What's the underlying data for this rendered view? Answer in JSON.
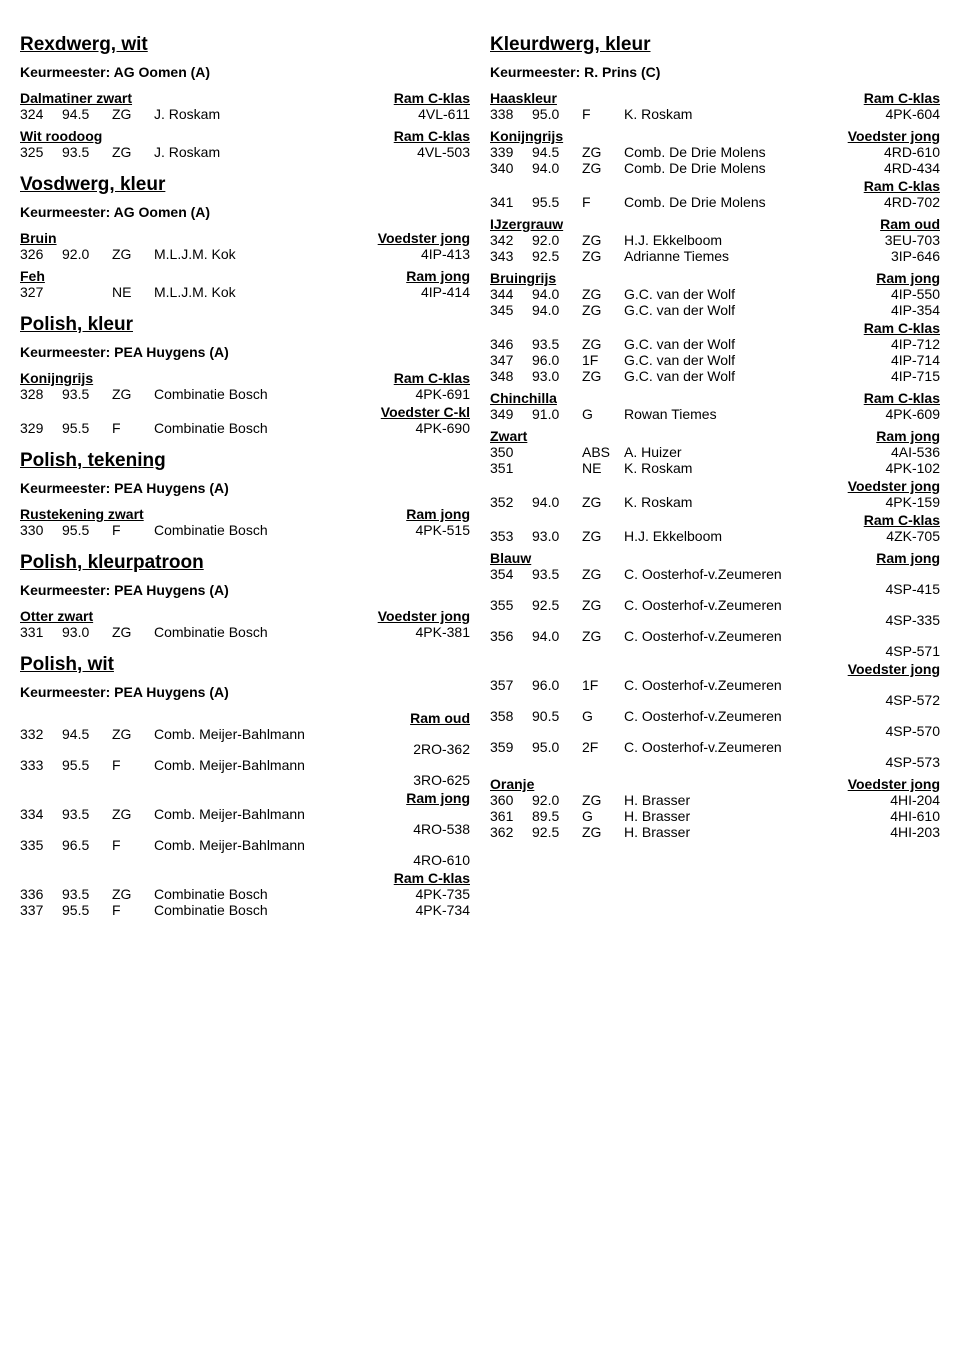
{
  "left": {
    "sections": [
      {
        "title": "Rexdwerg, wit",
        "judge": "Keurmeester: AG Oomen (A)",
        "groups": [
          {
            "sub_left": "Dalmatiner zwart",
            "sub_right": "Ram C-klas",
            "entries": [
              {
                "num": "324",
                "score": "94.5",
                "grade": "ZG",
                "name": "J. Roskam",
                "code": "4VL-611"
              }
            ]
          },
          {
            "sub_left": "Wit roodoog",
            "sub_right": "Ram C-klas",
            "entries": [
              {
                "num": "325",
                "score": "93.5",
                "grade": "ZG",
                "name": "J. Roskam",
                "code": "4VL-503"
              }
            ]
          }
        ]
      },
      {
        "title": "Vosdwerg, kleur",
        "judge": "Keurmeester: AG Oomen (A)",
        "groups": [
          {
            "sub_left": "Bruin",
            "sub_right": "Voedster jong",
            "entries": [
              {
                "num": "326",
                "score": "92.0",
                "grade": "ZG",
                "name": "M.L.J.M. Kok",
                "code": "4IP-413"
              }
            ]
          },
          {
            "sub_left": "Feh",
            "sub_right": "Ram jong",
            "entries": [
              {
                "num": "327",
                "score": "",
                "grade": "NE",
                "name": "M.L.J.M. Kok",
                "code": "4IP-414"
              }
            ]
          }
        ]
      },
      {
        "title": "Polish, kleur",
        "judge": "Keurmeester: PEA Huygens (A)",
        "groups": [
          {
            "sub_left": "Konijngrijs",
            "sub_right": "Ram C-klas",
            "entries": [
              {
                "num": "328",
                "score": "93.5",
                "grade": "ZG",
                "name": "Combinatie Bosch",
                "code": "4PK-691"
              }
            ],
            "tail_right": "Voedster C-kl",
            "tail_entries": [
              {
                "num": "329",
                "score": "95.5",
                "grade": "F",
                "name": "Combinatie Bosch",
                "code": "4PK-690"
              }
            ]
          }
        ]
      },
      {
        "title": "Polish, tekening",
        "judge": "Keurmeester: PEA Huygens (A)",
        "groups": [
          {
            "sub_left": "Rustekening zwart",
            "sub_right": "Ram jong",
            "entries": [
              {
                "num": "330",
                "score": "95.5",
                "grade": "F",
                "name": "Combinatie Bosch",
                "code": "4PK-515"
              }
            ]
          }
        ]
      },
      {
        "title": "Polish, kleurpatroon",
        "judge": "Keurmeester: PEA Huygens (A)",
        "groups": [
          {
            "sub_left": "Otter zwart",
            "sub_right": "Voedster jong",
            "entries": [
              {
                "num": "331",
                "score": "93.0",
                "grade": "ZG",
                "name": "Combinatie Bosch",
                "code": "4PK-381"
              }
            ]
          }
        ]
      },
      {
        "title": "Polish, wit",
        "judge": "Keurmeester: PEA Huygens (A)",
        "groups": [
          {
            "sub_left": "",
            "sub_right": "Ram oud",
            "entries": [
              {
                "num": "332",
                "score": "94.5",
                "grade": "ZG",
                "name": "Comb. Meijer-Bahlmann",
                "code": "2RO-362",
                "wrap": true
              },
              {
                "num": "333",
                "score": "95.5",
                "grade": "F",
                "name": "Comb. Meijer-Bahlmann",
                "code": "3RO-625",
                "wrap": true
              }
            ],
            "tail_right": "Ram jong",
            "tail_entries": [
              {
                "num": "334",
                "score": "93.5",
                "grade": "ZG",
                "name": "Comb. Meijer-Bahlmann",
                "code": "4RO-538",
                "wrap": true
              },
              {
                "num": "335",
                "score": "96.5",
                "grade": "F",
                "name": "Comb. Meijer-Bahlmann",
                "code": "4RO-610",
                "wrap": true
              }
            ],
            "tail_right2": "Ram C-klas",
            "tail_entries2": [
              {
                "num": "336",
                "score": "93.5",
                "grade": "ZG",
                "name": "Combinatie Bosch",
                "code": "4PK-735"
              },
              {
                "num": "337",
                "score": "95.5",
                "grade": "F",
                "name": "Combinatie Bosch",
                "code": "4PK-734"
              }
            ]
          }
        ]
      }
    ]
  },
  "right": {
    "sections": [
      {
        "title": "Kleurdwerg, kleur",
        "judge": "Keurmeester: R. Prins (C)",
        "groups": [
          {
            "sub_left": "Haaskleur",
            "sub_right": "Ram C-klas",
            "entries": [
              {
                "num": "338",
                "score": "95.0",
                "grade": "F",
                "name": "K. Roskam",
                "code": "4PK-604"
              }
            ]
          },
          {
            "sub_left": "Konijngrijs",
            "sub_right": "Voedster jong",
            "entries": [
              {
                "num": "339",
                "score": "94.5",
                "grade": "ZG",
                "name": "Comb. De Drie Molens",
                "code": "4RD-610"
              },
              {
                "num": "340",
                "score": "94.0",
                "grade": "ZG",
                "name": "Comb. De Drie Molens",
                "code": "4RD-434"
              }
            ],
            "tail_right": "Ram C-klas",
            "tail_entries": [
              {
                "num": "341",
                "score": "95.5",
                "grade": "F",
                "name": "Comb. De Drie Molens",
                "code": "4RD-702"
              }
            ]
          },
          {
            "sub_left": "IJzergrauw",
            "sub_right": "Ram oud",
            "entries": [
              {
                "num": "342",
                "score": "92.0",
                "grade": "ZG",
                "name": "H.J. Ekkelboom",
                "code": "3EU-703"
              },
              {
                "num": "343",
                "score": "92.5",
                "grade": "ZG",
                "name": "Adrianne Tiemes",
                "code": "3IP-646"
              }
            ]
          },
          {
            "sub_left": "Bruingrijs",
            "sub_right": "Ram jong",
            "entries": [
              {
                "num": "344",
                "score": "94.0",
                "grade": "ZG",
                "name": "G.C. van der Wolf",
                "code": "4IP-550"
              },
              {
                "num": "345",
                "score": "94.0",
                "grade": "ZG",
                "name": "G.C. van der Wolf",
                "code": "4IP-354"
              }
            ],
            "tail_right": "Ram C-klas",
            "tail_entries": [
              {
                "num": "346",
                "score": "93.5",
                "grade": "ZG",
                "name": "G.C. van der Wolf",
                "code": "4IP-712"
              },
              {
                "num": "347",
                "score": "96.0",
                "grade": "1F",
                "name": "G.C. van der Wolf",
                "code": "4IP-714"
              },
              {
                "num": "348",
                "score": "93.0",
                "grade": "ZG",
                "name": "G.C. van der Wolf",
                "code": "4IP-715"
              }
            ]
          },
          {
            "sub_left": "Chinchilla",
            "sub_right": "Ram C-klas",
            "entries": [
              {
                "num": "349",
                "score": "91.0",
                "grade": "G",
                "name": "Rowan Tiemes",
                "code": "4PK-609"
              }
            ]
          },
          {
            "sub_left": "Zwart",
            "sub_right": "Ram jong",
            "entries": [
              {
                "num": "350",
                "score": "",
                "grade": "ABS",
                "name": "A. Huizer",
                "code": "4AI-536"
              },
              {
                "num": "351",
                "score": "",
                "grade": "NE",
                "name": "K. Roskam",
                "code": "4PK-102"
              }
            ],
            "tail_right": "Voedster jong",
            "tail_entries": [
              {
                "num": "352",
                "score": "94.0",
                "grade": "ZG",
                "name": "K. Roskam",
                "code": "4PK-159"
              }
            ],
            "tail_right2": "Ram C-klas",
            "tail_entries2": [
              {
                "num": "353",
                "score": "93.0",
                "grade": "ZG",
                "name": "H.J. Ekkelboom",
                "code": "4ZK-705"
              }
            ]
          },
          {
            "sub_left": "Blauw",
            "sub_right": "Ram jong",
            "entries": [
              {
                "num": "354",
                "score": "93.5",
                "grade": "ZG",
                "name": "C. Oosterhof-v.Zeumeren",
                "code": "4SP-415",
                "wrap": true
              },
              {
                "num": "355",
                "score": "92.5",
                "grade": "ZG",
                "name": "C. Oosterhof-v.Zeumeren",
                "code": "4SP-335",
                "wrap": true
              },
              {
                "num": "356",
                "score": "94.0",
                "grade": "ZG",
                "name": "C. Oosterhof-v.Zeumeren",
                "code": "4SP-571",
                "wrap": true
              }
            ],
            "tail_right": "Voedster jong",
            "tail_entries": [
              {
                "num": "357",
                "score": "96.0",
                "grade": "1F",
                "name": "C. Oosterhof-v.Zeumeren",
                "code": "4SP-572",
                "wrap": true
              },
              {
                "num": "358",
                "score": "90.5",
                "grade": "G",
                "name": "C. Oosterhof-v.Zeumeren",
                "code": "4SP-570",
                "wrap": true
              },
              {
                "num": "359",
                "score": "95.0",
                "grade": "2F",
                "name": "C. Oosterhof-v.Zeumeren",
                "code": "4SP-573",
                "wrap": true
              }
            ]
          },
          {
            "sub_left": "Oranje",
            "sub_right": "Voedster jong",
            "entries": [
              {
                "num": "360",
                "score": "92.0",
                "grade": "ZG",
                "name": "H. Brasser",
                "code": "4HI-204"
              },
              {
                "num": "361",
                "score": "89.5",
                "grade": "G",
                "name": "H. Brasser",
                "code": "4HI-610"
              },
              {
                "num": "362",
                "score": "92.5",
                "grade": "ZG",
                "name": "H. Brasser",
                "code": "4HI-203"
              }
            ]
          }
        ]
      }
    ]
  }
}
